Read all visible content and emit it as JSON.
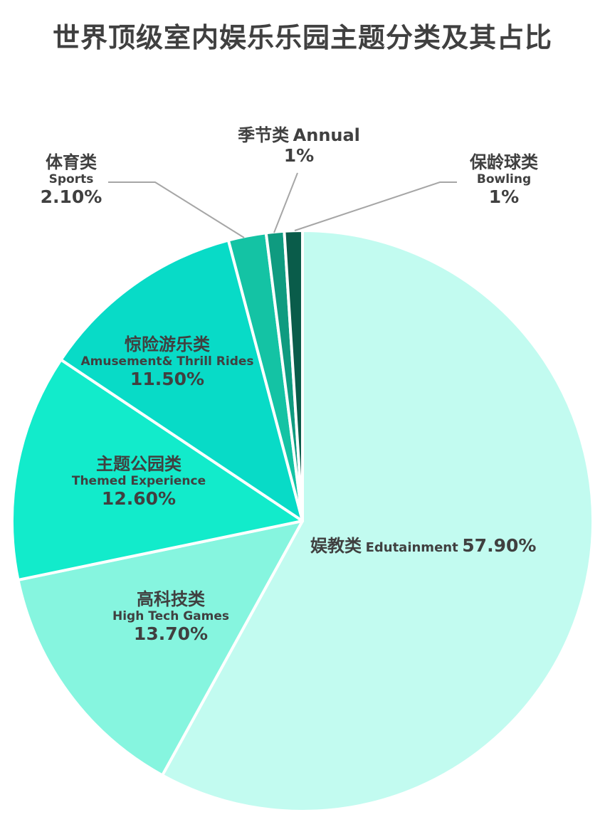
{
  "title": "世界顶级室内娱乐乐园主题分类及其占比",
  "colors": {
    "edutainment": "#C2FBF0",
    "hightech": "#86F5DF",
    "themed": "#12EBCB",
    "thrill": "#08DBC7",
    "sports": "#14C3A4",
    "annual": "#0F9B80",
    "bowling": "#0A5C4A",
    "separator": "#ffffff",
    "leader": "#a6a6a6"
  },
  "chart_data": {
    "type": "pie",
    "title": "世界顶级室内娱乐乐园主题分类及其占比",
    "start_angle_deg": 0,
    "direction": "clockwise",
    "slices": [
      {
        "key": "edutainment",
        "name_cn": "娱教类",
        "name_en": "Edutainment",
        "label": "57.90%",
        "value": 57.9
      },
      {
        "key": "hightech",
        "name_cn": "高科技类",
        "name_en": "High Tech Games",
        "label": "13.70%",
        "value": 13.7
      },
      {
        "key": "themed",
        "name_cn": "主题公园类",
        "name_en": "Themed Experience",
        "label": "12.60%",
        "value": 12.6
      },
      {
        "key": "thrill",
        "name_cn": "惊险游乐类",
        "name_en": "Amusement& Thrill Rides",
        "label": "11.50%",
        "value": 11.5
      },
      {
        "key": "sports",
        "name_cn": "体育类",
        "name_en": "Sports",
        "label": "2.10%",
        "value": 2.1
      },
      {
        "key": "annual",
        "name_cn": "季节类",
        "name_en": "Annual",
        "label": "1%",
        "value": 1
      },
      {
        "key": "bowling",
        "name_cn": "保龄球类",
        "name_en": "Bowling",
        "label": "1%",
        "value": 1
      }
    ]
  }
}
